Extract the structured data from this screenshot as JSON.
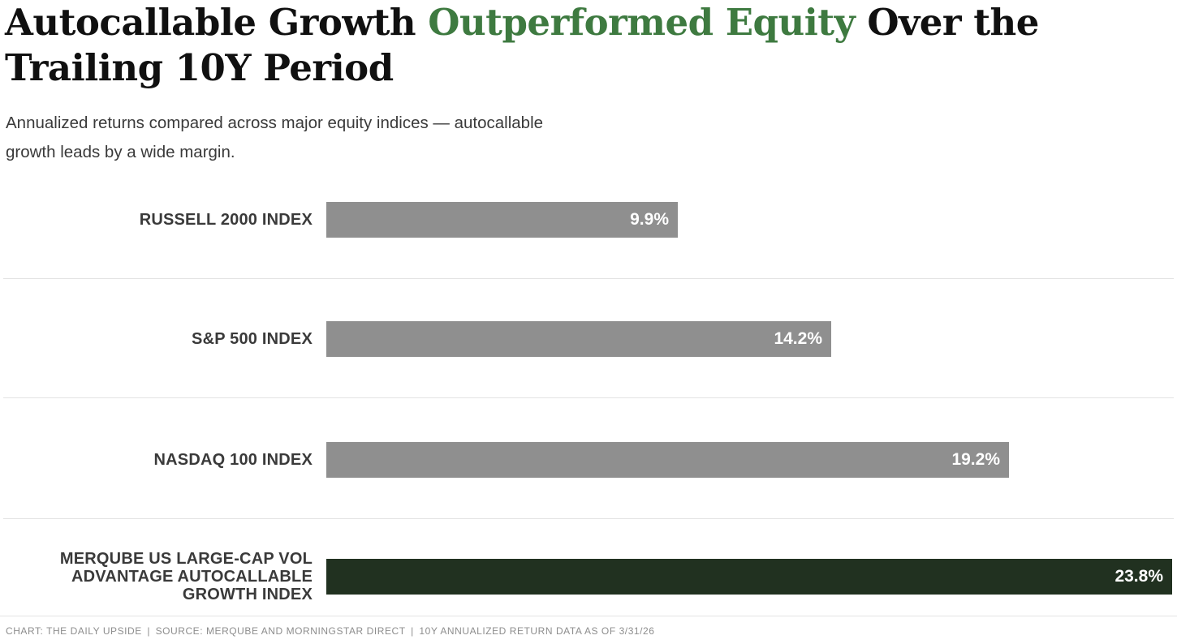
{
  "title": {
    "part1": "Autocallable Growth",
    "highlight": "Outperformed Equity",
    "part3": "Over the",
    "part4": "Trailing 10Y Period"
  },
  "subtitle": {
    "lines": [
      "Annualized returns compared across major equity indices — autocallable",
      "growth leads by a wide margin."
    ]
  },
  "chart_data": {
    "type": "bar",
    "orientation": "horizontal",
    "title": "Autocallable Growth Outperformed Equity Over the Trailing 10Y Period",
    "categories": [
      "RUSSELL 2000 INDEX",
      "S&P 500 INDEX",
      "NASDAQ 100 INDEX",
      "MERQUBE US LARGE-CAP VOL ADVANTAGE AUTOCALLABLE GROWTH INDEX"
    ],
    "category_label_lines": [
      [
        "RUSSELL 2000 INDEX"
      ],
      [
        "S&P 500 INDEX"
      ],
      [
        "NASDAQ 100 INDEX"
      ],
      [
        "MERQUBE US LARGE-CAP VOL",
        "ADVANTAGE AUTOCALLABLE",
        "GROWTH INDEX"
      ]
    ],
    "values": [
      9.9,
      14.2,
      19.2,
      23.8
    ],
    "value_labels": [
      "9.9%",
      "14.2%",
      "19.2%",
      "23.8%"
    ],
    "value_suffix": "%",
    "xlim": [
      0,
      23.8
    ],
    "grid": false,
    "legend": false,
    "bar_colors": [
      "#8f8f8f",
      "#8f8f8f",
      "#8f8f8f",
      "#213120"
    ]
  },
  "footer": {
    "text": "CHART: THE DAILY UPSIDE | SOURCE: MERQUBE AND MORNINGSTAR DIRECT | 10Y ANNUALIZED RETURN DATA AS OF 3/31/26"
  },
  "colors": {
    "title_text": "#101010",
    "title_highlight_green": "#3e7a40",
    "subtitle_text": "#3a3a3a",
    "category_label_text": "#3a3a3a",
    "bar_gray": "#8f8f8f",
    "bar_dark_green": "#213120",
    "value_label_text": "#ffffff",
    "divider": "#e3e3e3",
    "footer_text": "#8d8d8d"
  }
}
